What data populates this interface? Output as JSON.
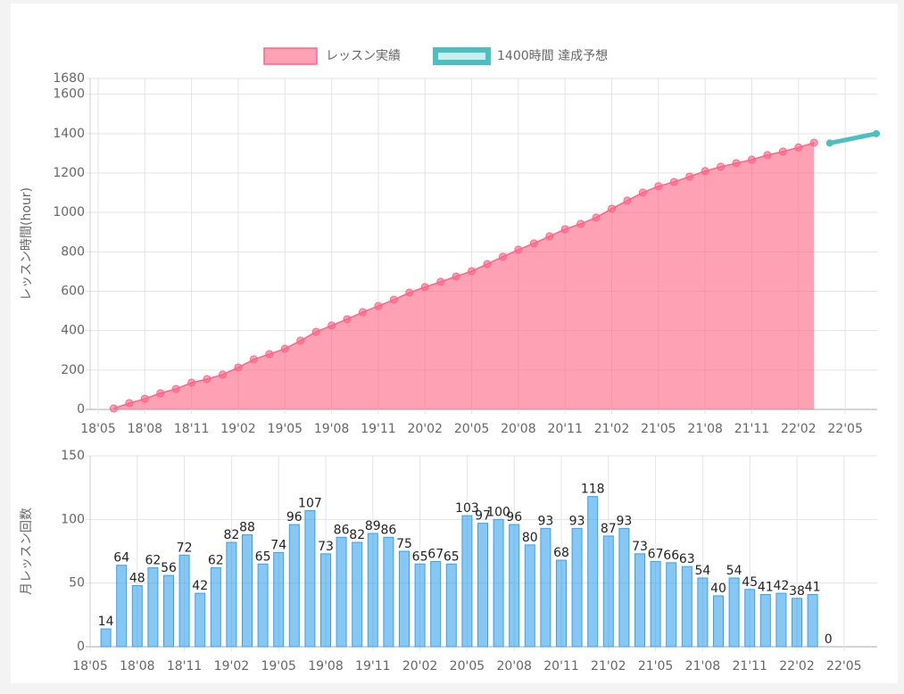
{
  "chart_data": [
    {
      "type": "area",
      "y_label": "レッスン時間(hour)",
      "categories": [
        "18'05",
        null,
        null,
        "18'08",
        null,
        null,
        "18'11",
        null,
        null,
        "19'02",
        null,
        null,
        "19'05",
        null,
        null,
        "19'08",
        null,
        null,
        "19'11",
        null,
        null,
        "20'02",
        null,
        null,
        "20'05",
        null,
        null,
        "20'08",
        null,
        null,
        "20'11",
        null,
        null,
        "21'02",
        null,
        null,
        "21'05",
        null,
        null,
        "21'08",
        null,
        null,
        "21'11",
        null,
        null,
        "22'02",
        null,
        null,
        "22'05",
        null,
        null
      ],
      "series": [
        {
          "name": "レッスン実績",
          "color": "#ff6384",
          "values": [
            null,
            5,
            32,
            54,
            82,
            104,
            136,
            154,
            177,
            213,
            254,
            281,
            308,
            349,
            394,
            426,
            458,
            494,
            525,
            557,
            593,
            621,
            648,
            675,
            702,
            738,
            775,
            811,
            843,
            879,
            915,
            942,
            974,
            1019,
            1060,
            1101,
            1133,
            1155,
            1182,
            1210,
            1232,
            1250,
            1268,
            1291,
            1309,
            1330,
            1354,
            null,
            null,
            null,
            null
          ]
        },
        {
          "name": "1400時間 達成予想",
          "color": "#4bc0c0",
          "values": [
            null,
            null,
            null,
            null,
            null,
            null,
            null,
            null,
            null,
            null,
            null,
            null,
            null,
            null,
            null,
            null,
            null,
            null,
            null,
            null,
            null,
            null,
            null,
            null,
            null,
            null,
            null,
            null,
            null,
            null,
            null,
            null,
            null,
            null,
            null,
            null,
            null,
            null,
            null,
            null,
            null,
            null,
            null,
            null,
            null,
            null,
            null,
            1352,
            1368,
            1384,
            1400
          ]
        }
      ],
      "ylim": [
        0,
        1680
      ],
      "yticks": [
        0,
        200,
        400,
        600,
        800,
        1000,
        1200,
        1400,
        1600,
        1680
      ],
      "grid": true
    },
    {
      "type": "bar",
      "y_label": "月レッスン回数",
      "categories": [
        "18'05",
        null,
        null,
        "18'08",
        null,
        null,
        "18'11",
        null,
        null,
        "19'02",
        null,
        null,
        "19'05",
        null,
        null,
        "19'08",
        null,
        null,
        "19'11",
        null,
        null,
        "20'02",
        null,
        null,
        "20'05",
        null,
        null,
        "20'08",
        null,
        null,
        "20'11",
        null,
        null,
        "21'02",
        null,
        null,
        "21'05",
        null,
        null,
        "21'08",
        null,
        null,
        "21'11",
        null,
        null,
        "22'02",
        null,
        null,
        "22'05",
        null,
        null
      ],
      "color": "#36a2eb",
      "values": [
        null,
        14,
        64,
        48,
        62,
        56,
        72,
        42,
        62,
        82,
        88,
        65,
        74,
        96,
        107,
        73,
        86,
        82,
        89,
        86,
        75,
        65,
        67,
        65,
        103,
        97,
        100,
        96,
        80,
        93,
        68,
        93,
        118,
        87,
        93,
        73,
        67,
        66,
        63,
        54,
        40,
        54,
        45,
        41,
        42,
        38,
        41,
        0,
        null,
        null,
        null
      ],
      "ylim": [
        0,
        150
      ],
      "yticks": [
        0,
        50,
        100,
        150
      ],
      "grid": true
    }
  ]
}
